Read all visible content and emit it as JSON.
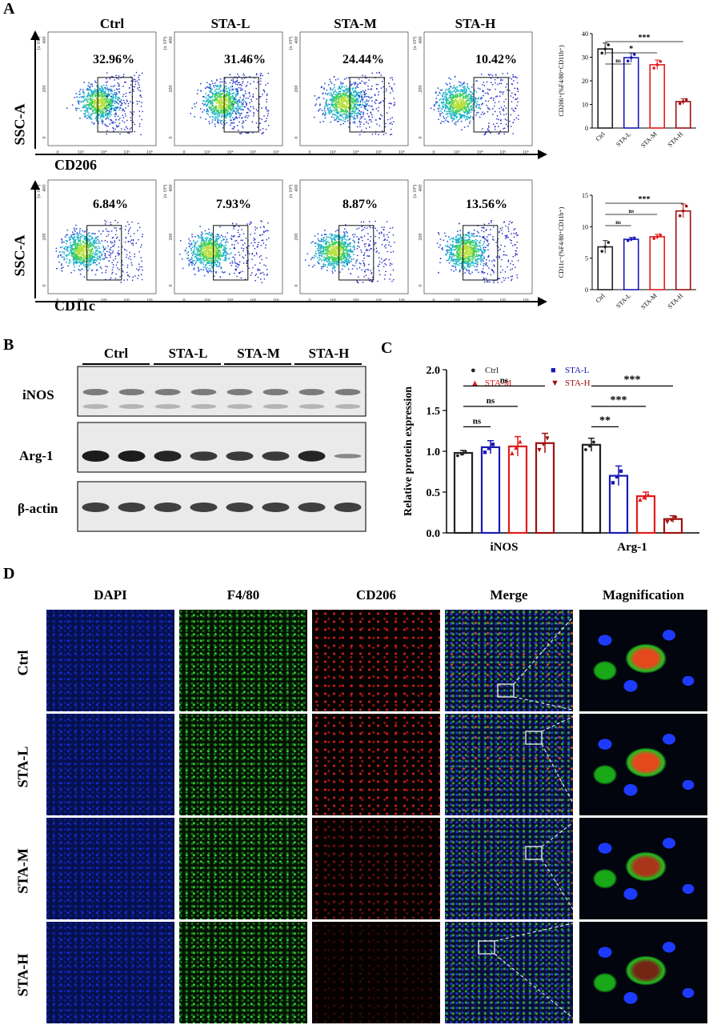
{
  "panels": {
    "a": "A",
    "b": "B",
    "c": "C",
    "d": "D"
  },
  "flow": {
    "groups": [
      "Ctrl",
      "STA-L",
      "STA-M",
      "STA-H"
    ],
    "y_axis_label": "SSC-A",
    "y_ticks": [
      "0",
      "200",
      "400"
    ],
    "y_exp": "(x 10⁴)",
    "x_ticks": [
      "0",
      "10³",
      "10⁴",
      "10⁵",
      "10⁶"
    ],
    "row1": {
      "marker": "CD206",
      "percents": [
        "32.96%",
        "31.46%",
        "24.44%",
        "10.42%"
      ]
    },
    "row2": {
      "marker": "CD11c",
      "percents": [
        "6.84%",
        "7.93%",
        "8.87%",
        "13.56%"
      ]
    }
  },
  "chart_data": [
    {
      "type": "bar",
      "ylabel": "CD206⁺(%F4/80⁺CD11b⁺)",
      "categories": [
        "Ctrl",
        "STA-L",
        "STA-M",
        "STA-H"
      ],
      "values": [
        33.5,
        29.8,
        26.8,
        11.2
      ],
      "errors": [
        2.5,
        2.0,
        2.0,
        1.2
      ],
      "ylim": [
        0,
        40
      ],
      "yticks": [
        "0",
        "10",
        "20",
        "30",
        "40"
      ],
      "significance": [
        "ns",
        "*",
        "***"
      ],
      "colors": [
        "#222222",
        "#1a1ab4",
        "#e21b1b",
        "#a01010"
      ]
    },
    {
      "type": "bar",
      "ylabel": "CD11c⁺(%F4/80⁺CD11b⁺)",
      "categories": [
        "Ctrl",
        "STA-L",
        "STA-M",
        "STA-H"
      ],
      "values": [
        6.8,
        8.0,
        8.4,
        12.5
      ],
      "errors": [
        1.0,
        0.3,
        0.4,
        1.1
      ],
      "ylim": [
        0,
        15
      ],
      "yticks": [
        "0",
        "5",
        "10",
        "15"
      ],
      "significance": [
        "ns",
        "ns",
        "***"
      ],
      "colors": [
        "#222222",
        "#1a1ab4",
        "#e21b1b",
        "#a01010"
      ]
    },
    {
      "type": "bar",
      "ylabel": "Relative protein expression",
      "categories": [
        "iNOS",
        "Arg-1"
      ],
      "series": [
        {
          "name": "Ctrl",
          "values": [
            0.98,
            1.08
          ],
          "errors": [
            0.03,
            0.08
          ],
          "color": "#222222",
          "marker": "●"
        },
        {
          "name": "STA-L",
          "values": [
            1.05,
            0.7
          ],
          "errors": [
            0.08,
            0.12
          ],
          "color": "#1a1ab4",
          "marker": "■"
        },
        {
          "name": "STA-M",
          "values": [
            1.06,
            0.45
          ],
          "errors": [
            0.12,
            0.05
          ],
          "color": "#e21b1b",
          "marker": "▲"
        },
        {
          "name": "STA-H",
          "values": [
            1.1,
            0.17
          ],
          "errors": [
            0.12,
            0.04
          ],
          "color": "#a01010",
          "marker": "▼"
        }
      ],
      "ylim": [
        0,
        2.0
      ],
      "yticks": [
        "0.0",
        "0.5",
        "1.0",
        "1.5",
        "2.0"
      ],
      "significance": {
        "iNOS": [
          "ns",
          "ns",
          "ns"
        ],
        "Arg-1": [
          "**",
          "***",
          "***"
        ]
      }
    }
  ],
  "western": {
    "groups": [
      "Ctrl",
      "STA-L",
      "STA-M",
      "STA-H"
    ],
    "rows": [
      "iNOS",
      "Arg-1",
      "β-actin"
    ],
    "arg1_intensity": [
      1.0,
      1.0,
      0.95,
      0.95,
      0.8,
      0.8,
      0.8,
      0.8,
      0.85,
      0.95,
      0.3,
      0.3
    ]
  },
  "if": {
    "columns": [
      "DAPI",
      "F4/80",
      "CD206",
      "Merge",
      "Magnification"
    ],
    "rows": [
      "Ctrl",
      "STA-L",
      "STA-M",
      "STA-H"
    ]
  }
}
